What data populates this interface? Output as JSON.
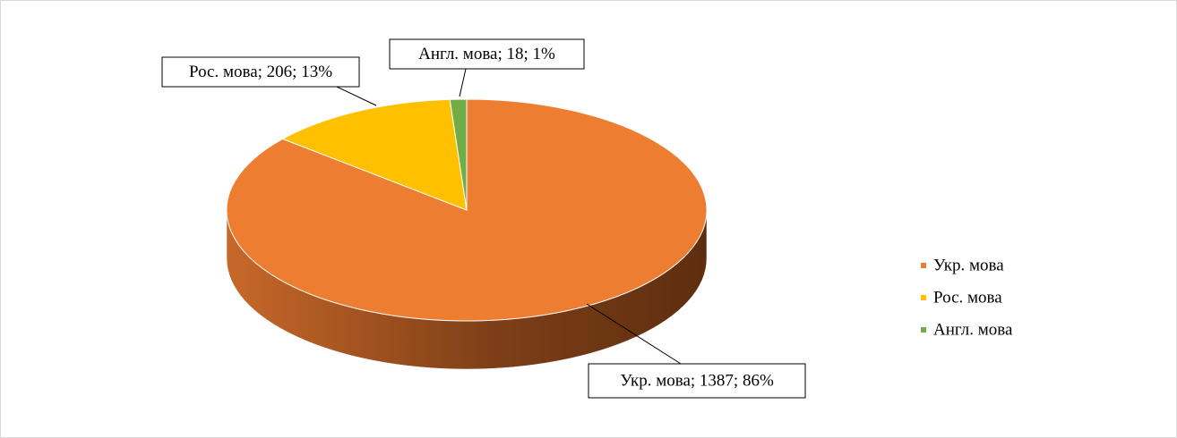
{
  "chart_data": {
    "type": "pie3d",
    "categories": [
      "Укр. мова",
      "Рос. мова",
      "Англ. мова"
    ],
    "values": [
      1387,
      206,
      18
    ],
    "value_labels": [
      "Укр. мова; 1387; 86%",
      "Рос. мова; 206; 13%",
      "Англ. мова; 18; 1%"
    ],
    "colors": [
      "#ed7d31",
      "#ffc000",
      "#70ad47"
    ],
    "legend": "right"
  }
}
